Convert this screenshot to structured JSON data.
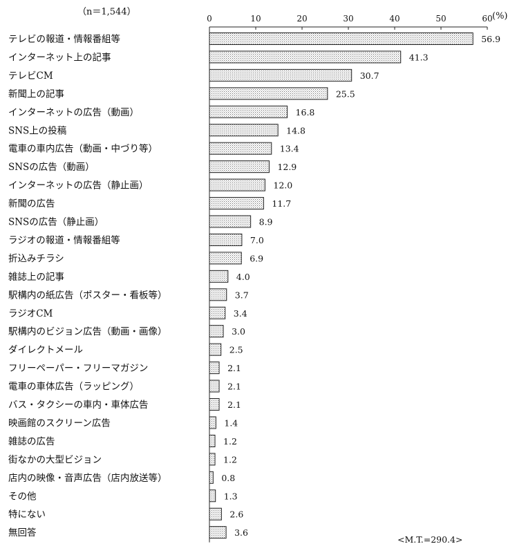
{
  "sample": "（n＝1,544）",
  "unit": "(%)",
  "note": "<M.T.=290.4>",
  "chart_data": {
    "type": "bar",
    "orientation": "horizontal",
    "xlim": [
      0,
      60
    ],
    "ticks": [
      "0",
      "10",
      "20",
      "30",
      "40",
      "50",
      "60"
    ],
    "grid": false,
    "fill": "dotted gray",
    "categories": [
      "テレビの報道・情報番組等",
      "インターネット上の記事",
      "テレビCM",
      "新聞上の記事",
      "インターネットの広告（動画）",
      "SNS上の投稿",
      "電車の車内広告（動画・中づり等）",
      "SNSの広告（動画）",
      "インターネットの広告（静止画）",
      "新聞の広告",
      "SNSの広告（静止画）",
      "ラジオの報道・情報番組等",
      "折込みチラシ",
      "雑誌上の記事",
      "駅構内の紙広告（ポスター・看板等）",
      "ラジオCM",
      "駅構内のビジョン広告（動画・画像）",
      "ダイレクトメール",
      "フリーペーパー・フリーマガジン",
      "電車の車体広告（ラッピング）",
      "バス・タクシーの車内・車体広告",
      "映画館のスクリーン広告",
      "雑誌の広告",
      "街なかの大型ビジョン",
      "店内の映像・音声広告（店内放送等）",
      "その他",
      "特にない",
      "無回答"
    ],
    "values": [
      56.9,
      41.3,
      30.7,
      25.5,
      16.8,
      14.8,
      13.4,
      12.9,
      12.0,
      11.7,
      8.9,
      7.0,
      6.9,
      4.0,
      3.7,
      3.4,
      3.0,
      2.5,
      2.1,
      2.1,
      2.1,
      1.4,
      1.2,
      1.2,
      0.8,
      1.3,
      2.6,
      3.6
    ],
    "value_labels": [
      "56.9",
      "41.3",
      "30.7",
      "25.5",
      "16.8",
      "14.8",
      "13.4",
      "12.9",
      "12.0",
      "11.7",
      "8.9",
      "7.0",
      "6.9",
      "4.0",
      "3.7",
      "3.4",
      "3.0",
      "2.5",
      "2.1",
      "2.1",
      "2.1",
      "1.4",
      "1.2",
      "1.2",
      "0.8",
      "1.3",
      "2.6",
      "3.6"
    ]
  }
}
